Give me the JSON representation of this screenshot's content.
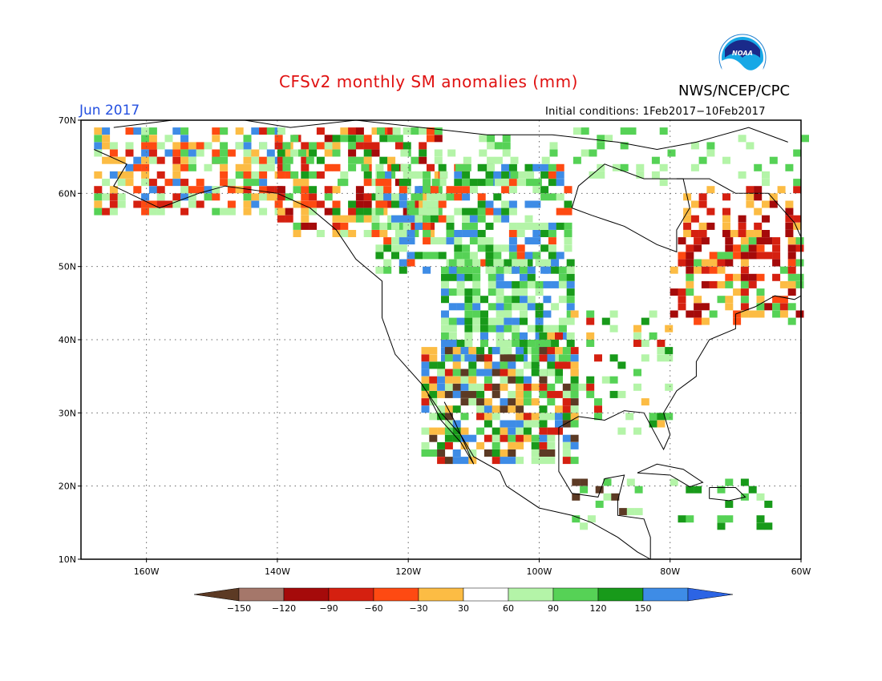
{
  "title": "CFSv2 monthly SM anomalies (mm)",
  "agency": "NWS/NCEP/CPC",
  "logo_text": "NOAA",
  "valid_month": "Jun 2017",
  "initial_conditions": "Initial conditions: 1Feb2017−10Feb2017",
  "map": {
    "lon_range": [
      -170,
      -60
    ],
    "lat_range": [
      10,
      70
    ],
    "lat_labels": [
      "70N",
      "60N",
      "50N",
      "40N",
      "30N",
      "20N",
      "10N"
    ],
    "lon_labels": [
      "160W",
      "140W",
      "120W",
      "100W",
      "80W",
      "60W"
    ]
  },
  "colorbar": {
    "ticks": [
      "−150",
      "−120",
      "−90",
      "−60",
      "−30",
      "30",
      "60",
      "90",
      "120",
      "150"
    ],
    "colors": [
      "#5c3a24",
      "#a5776a",
      "#a50a0a",
      "#d52010",
      "#fe4a12",
      "#fcbc44",
      "#ffffff",
      "#b4f4a8",
      "#56d256",
      "#189a1a",
      "#3e8ce6",
      "#2c64e4"
    ]
  }
}
